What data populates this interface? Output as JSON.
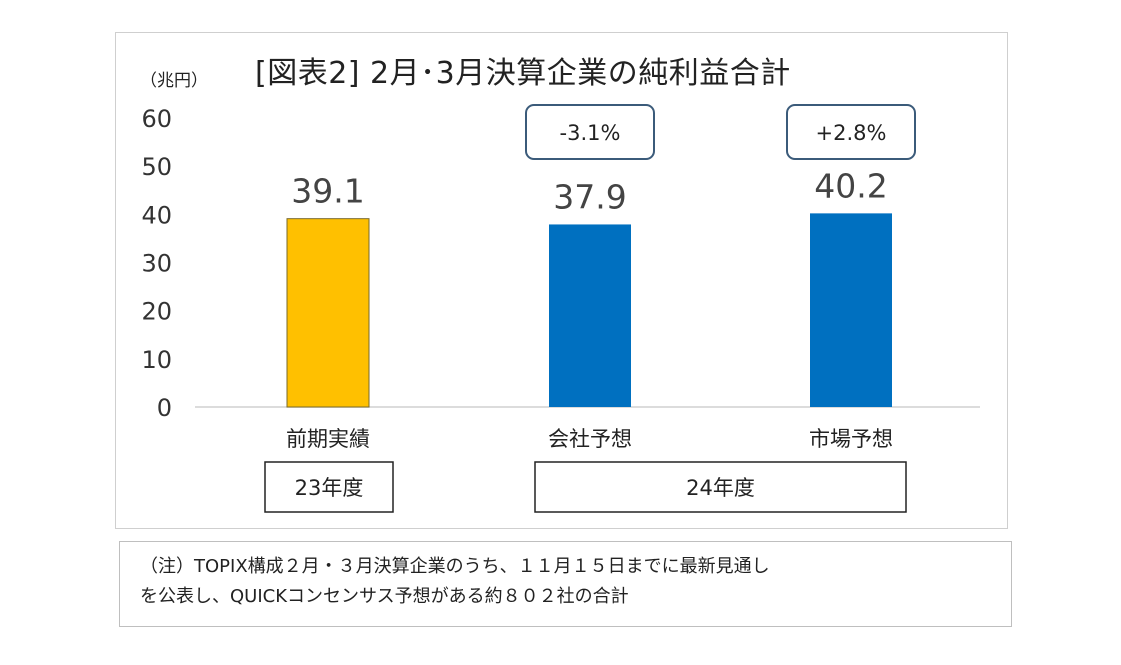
{
  "title": "[図表2] 2月･3月決算企業の純利益合計",
  "unit": "（兆円）",
  "chart_data": {
    "type": "bar",
    "title": "[図表2] 2月･3月決算企業の純利益合計",
    "ylabel": "（兆円）",
    "ylim": [
      0,
      60
    ],
    "yticks": [
      0,
      10,
      20,
      30,
      40,
      50,
      60
    ],
    "categories": [
      "前期実績",
      "会社予想",
      "市場予想"
    ],
    "values": [
      39.1,
      37.9,
      40.2
    ],
    "value_labels": [
      "39.1",
      "37.9",
      "40.2"
    ],
    "bar_colors": [
      "#FFC000",
      "#0070C0",
      "#0070C0"
    ],
    "change_labels": [
      "",
      "-3.1%",
      "+2.8%"
    ],
    "groups": [
      {
        "label": "23年度",
        "categories": [
          0
        ]
      },
      {
        "label": "24年度",
        "categories": [
          1,
          2
        ]
      }
    ],
    "grid": false
  },
  "note": {
    "line1": "（注）TOPIX構成２月・３月決算企業のうち、１１月１５日までに最新見通し",
    "line2": "を公表し、QUICKコンセンサス予想がある約８０２社の合計"
  }
}
